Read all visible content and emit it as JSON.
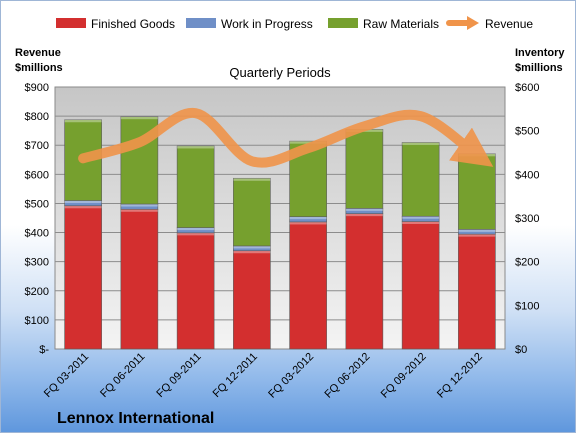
{
  "chart_data": {
    "type": "bar",
    "subtype": "stacked-bar-with-line",
    "title": "Quarterly Periods",
    "company": "Lennox International",
    "categories": [
      "FQ 03-2011",
      "FQ 06-2011",
      "FQ 09-2011",
      "FQ 12-2011",
      "FQ 03-2012",
      "FQ 06-2012",
      "FQ 09-2012",
      "FQ 12-2012"
    ],
    "series": [
      {
        "name": "Finished Goods",
        "axis": "right",
        "color": "#d32f2f",
        "values": [
          328,
          320,
          266,
          225,
          291,
          310,
          292,
          263
        ]
      },
      {
        "name": "Work in Progress",
        "axis": "right",
        "color": "#6f8fc7",
        "values": [
          12,
          12,
          12,
          11,
          12,
          12,
          12,
          11
        ]
      },
      {
        "name": "Raw Materials",
        "axis": "right",
        "color": "#76a02e",
        "values": [
          185,
          200,
          187,
          155,
          173,
          181,
          169,
          173
        ]
      },
      {
        "name": "Revenue",
        "axis": "left",
        "type": "line",
        "color": "#f0944a",
        "values": [
          655,
          710,
          810,
          645,
          690,
          765,
          800,
          665
        ]
      }
    ],
    "left_axis": {
      "label_line1": "Revenue",
      "label_line2": "$millions",
      "min": 0,
      "max": 900,
      "step": 100,
      "tick_labels": [
        "$-",
        "$100",
        "$200",
        "$300",
        "$400",
        "$500",
        "$600",
        "$700",
        "$800",
        "$900"
      ]
    },
    "right_axis": {
      "label_line1": "Inventory",
      "label_line2": "$millions",
      "min": 0,
      "max": 600,
      "step": 100,
      "tick_labels": [
        "$0",
        "$100",
        "$200",
        "$300",
        "$400",
        "$500",
        "$600"
      ]
    },
    "grid": true,
    "legend_position": "top"
  }
}
